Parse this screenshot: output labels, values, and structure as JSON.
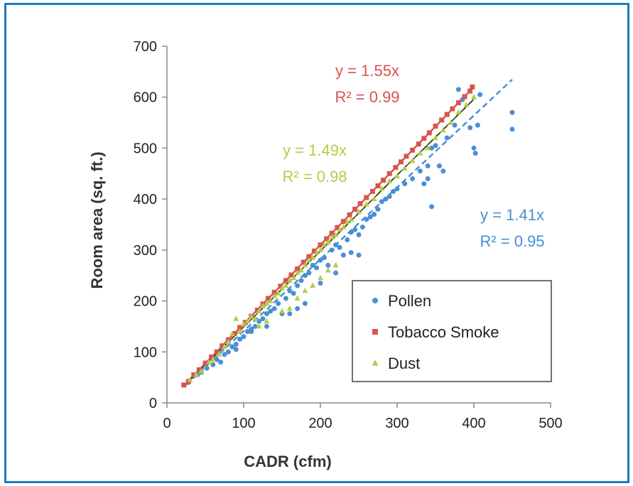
{
  "chart_data": {
    "type": "scatter",
    "xlabel": "CADR (cfm)",
    "ylabel": "Room area (sq. ft.)",
    "xlim": [
      0,
      500
    ],
    "ylim": [
      0,
      700
    ],
    "xticks": [
      0,
      100,
      200,
      300,
      400,
      500
    ],
    "yticks": [
      0,
      100,
      200,
      300,
      400,
      500,
      600,
      700
    ],
    "grid": false,
    "legend_position": "bottom-right",
    "series": [
      {
        "name": "Pollen",
        "color": "#4a8fd4",
        "marker": "circle",
        "trendline": {
          "slope": 1.41,
          "style": "dashed",
          "x_range": [
            25,
            450
          ],
          "equation": "y = 1.41x",
          "r2": "R² = 0.95"
        },
        "points": [
          [
            28,
            40
          ],
          [
            40,
            55
          ],
          [
            45,
            60
          ],
          [
            52,
            68
          ],
          [
            60,
            75
          ],
          [
            65,
            85
          ],
          [
            70,
            80
          ],
          [
            75,
            95
          ],
          [
            80,
            100
          ],
          [
            85,
            110
          ],
          [
            90,
            105
          ],
          [
            95,
            125
          ],
          [
            100,
            130
          ],
          [
            105,
            140
          ],
          [
            110,
            145
          ],
          [
            115,
            150
          ],
          [
            120,
            160
          ],
          [
            125,
            165
          ],
          [
            130,
            175
          ],
          [
            135,
            180
          ],
          [
            140,
            185
          ],
          [
            145,
            195
          ],
          [
            150,
            175
          ],
          [
            155,
            205
          ],
          [
            160,
            220
          ],
          [
            165,
            215
          ],
          [
            170,
            230
          ],
          [
            175,
            240
          ],
          [
            180,
            250
          ],
          [
            185,
            255
          ],
          [
            190,
            270
          ],
          [
            195,
            265
          ],
          [
            200,
            280
          ],
          [
            205,
            285
          ],
          [
            210,
            270
          ],
          [
            215,
            300
          ],
          [
            220,
            310
          ],
          [
            225,
            305
          ],
          [
            230,
            290
          ],
          [
            235,
            320
          ],
          [
            240,
            335
          ],
          [
            245,
            340
          ],
          [
            250,
            330
          ],
          [
            255,
            345
          ],
          [
            260,
            360
          ],
          [
            265,
            365
          ],
          [
            270,
            370
          ],
          [
            275,
            380
          ],
          [
            280,
            395
          ],
          [
            285,
            400
          ],
          [
            290,
            405
          ],
          [
            295,
            415
          ],
          [
            300,
            420
          ],
          [
            310,
            430
          ],
          [
            320,
            440
          ],
          [
            330,
            455
          ],
          [
            340,
            465
          ],
          [
            345,
            500
          ],
          [
            350,
            505
          ],
          [
            345,
            385
          ],
          [
            360,
            455
          ],
          [
            375,
            545
          ],
          [
            380,
            615
          ],
          [
            385,
            595
          ],
          [
            395,
            540
          ],
          [
            400,
            500
          ],
          [
            402,
            490
          ],
          [
            405,
            545
          ],
          [
            408,
            605
          ],
          [
            450,
            570
          ],
          [
            450,
            537
          ],
          [
            160,
            175
          ],
          [
            180,
            195
          ],
          [
            200,
            235
          ],
          [
            220,
            255
          ],
          [
            240,
            295
          ],
          [
            250,
            290
          ],
          [
            170,
            185
          ],
          [
            130,
            150
          ],
          [
            110,
            140
          ],
          [
            90,
            115
          ],
          [
            340,
            440
          ],
          [
            335,
            430
          ],
          [
            355,
            465
          ],
          [
            365,
            520
          ]
        ]
      },
      {
        "name": "Tobacco Smoke",
        "color": "#d9534f",
        "marker": "square",
        "trendline": {
          "slope": 1.55,
          "style": "solid",
          "x_range": [
            25,
            400
          ],
          "equation": "y = 1.55x",
          "r2": "R² = 0.99"
        },
        "points": [
          [
            22,
            35
          ],
          [
            28,
            42
          ],
          [
            35,
            55
          ],
          [
            42,
            65
          ],
          [
            50,
            78
          ],
          [
            58,
            90
          ],
          [
            65,
            100
          ],
          [
            72,
            112
          ],
          [
            80,
            124
          ],
          [
            88,
            136
          ],
          [
            95,
            148
          ],
          [
            102,
            158
          ],
          [
            110,
            170
          ],
          [
            118,
            182
          ],
          [
            125,
            194
          ],
          [
            132,
            205
          ],
          [
            140,
            217
          ],
          [
            148,
            229
          ],
          [
            155,
            240
          ],
          [
            162,
            251
          ],
          [
            170,
            263
          ],
          [
            178,
            276
          ],
          [
            185,
            287
          ],
          [
            192,
            298
          ],
          [
            200,
            310
          ],
          [
            208,
            322
          ],
          [
            215,
            333
          ],
          [
            222,
            344
          ],
          [
            230,
            356
          ],
          [
            238,
            369
          ],
          [
            245,
            380
          ],
          [
            252,
            391
          ],
          [
            260,
            403
          ],
          [
            268,
            415
          ],
          [
            275,
            426
          ],
          [
            282,
            437
          ],
          [
            290,
            450
          ],
          [
            298,
            462
          ],
          [
            305,
            473
          ],
          [
            312,
            484
          ],
          [
            320,
            496
          ],
          [
            328,
            508
          ],
          [
            335,
            519
          ],
          [
            342,
            530
          ],
          [
            350,
            543
          ],
          [
            358,
            555
          ],
          [
            365,
            566
          ],
          [
            372,
            577
          ],
          [
            380,
            589
          ],
          [
            388,
            601
          ],
          [
            395,
            612
          ],
          [
            398,
            620
          ]
        ]
      },
      {
        "name": "Dust",
        "color": "#b5cc4a",
        "marker": "triangle",
        "trendline": {
          "slope": 1.49,
          "style": "dashed",
          "x_range": [
            25,
            400
          ],
          "equation": "y = 1.49x",
          "r2": "R² = 0.98"
        },
        "points": [
          [
            30,
            45
          ],
          [
            38,
            55
          ],
          [
            45,
            62
          ],
          [
            55,
            80
          ],
          [
            60,
            85
          ],
          [
            68,
            95
          ],
          [
            75,
            110
          ],
          [
            80,
            120
          ],
          [
            85,
            135
          ],
          [
            90,
            165
          ],
          [
            95,
            140
          ],
          [
            100,
            155
          ],
          [
            105,
            160
          ],
          [
            110,
            170
          ],
          [
            115,
            165
          ],
          [
            120,
            180
          ],
          [
            125,
            190
          ],
          [
            130,
            195
          ],
          [
            135,
            200
          ],
          [
            140,
            210
          ],
          [
            145,
            215
          ],
          [
            150,
            225
          ],
          [
            155,
            230
          ],
          [
            160,
            240
          ],
          [
            165,
            245
          ],
          [
            170,
            255
          ],
          [
            175,
            260
          ],
          [
            180,
            270
          ],
          [
            185,
            280
          ],
          [
            190,
            285
          ],
          [
            195,
            295
          ],
          [
            200,
            300
          ],
          [
            205,
            310
          ],
          [
            210,
            315
          ],
          [
            215,
            325
          ],
          [
            220,
            330
          ],
          [
            225,
            340
          ],
          [
            230,
            345
          ],
          [
            235,
            355
          ],
          [
            240,
            360
          ],
          [
            250,
            375
          ],
          [
            260,
            390
          ],
          [
            270,
            400
          ],
          [
            280,
            420
          ],
          [
            290,
            435
          ],
          [
            300,
            445
          ],
          [
            310,
            460
          ],
          [
            320,
            475
          ],
          [
            330,
            490
          ],
          [
            340,
            500
          ],
          [
            350,
            520
          ],
          [
            360,
            535
          ],
          [
            370,
            550
          ],
          [
            380,
            570
          ],
          [
            390,
            585
          ],
          [
            400,
            600
          ],
          [
            170,
            205
          ],
          [
            180,
            220
          ],
          [
            190,
            230
          ],
          [
            200,
            245
          ],
          [
            210,
            260
          ],
          [
            220,
            270
          ],
          [
            160,
            185
          ],
          [
            150,
            180
          ],
          [
            130,
            160
          ],
          [
            120,
            150
          ]
        ]
      }
    ]
  }
}
